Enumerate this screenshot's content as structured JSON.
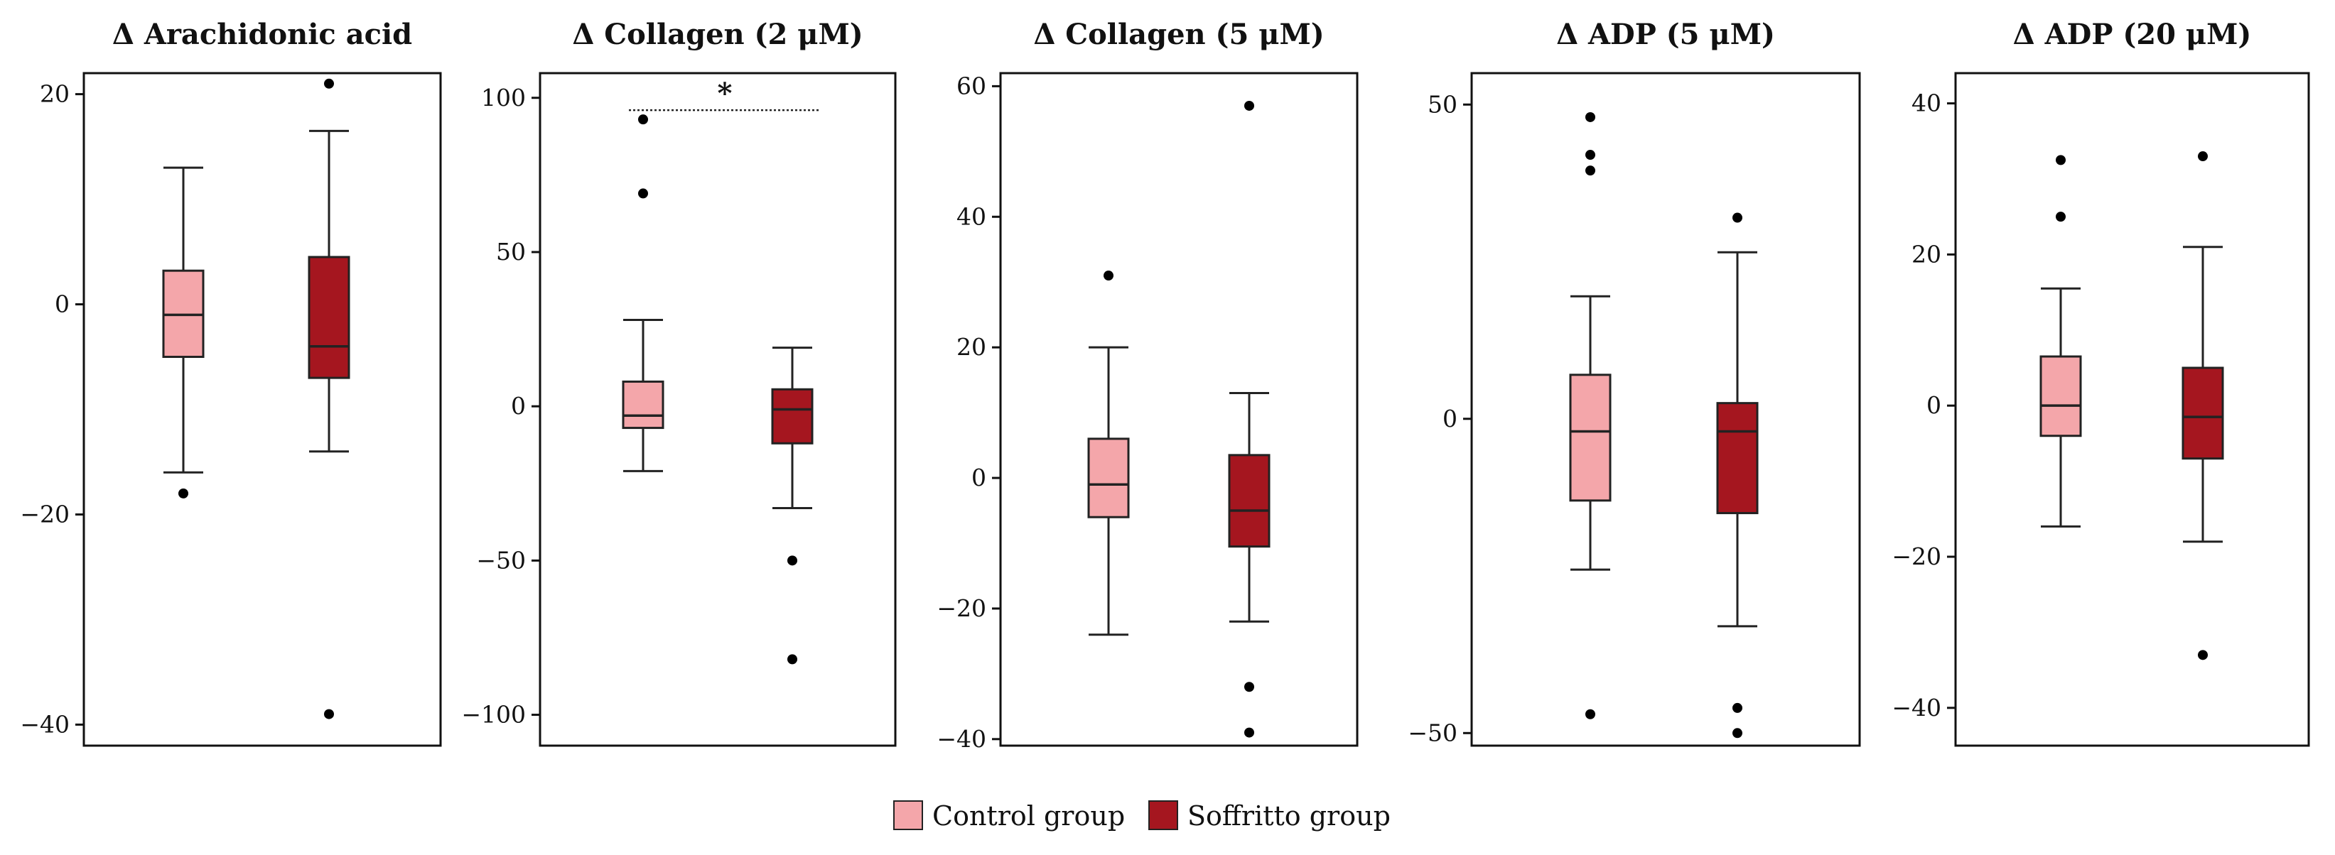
{
  "colors": {
    "control": "#f4a6aa",
    "soffritto": "#a5161f",
    "axis": "#111111",
    "outlier": "#000000"
  },
  "legend": {
    "items": [
      {
        "label": "Control group",
        "color_key": "control"
      },
      {
        "label": "Soffritto group",
        "color_key": "soffritto"
      }
    ]
  },
  "chart_data": [
    {
      "type": "boxplot",
      "title": "Δ Arachidonic acid",
      "ylim": [
        -42,
        22
      ],
      "yticks": [
        20,
        0,
        -20,
        -40
      ],
      "ytick_labels": [
        "20",
        "0",
        "−20",
        "−40"
      ],
      "groups": [
        {
          "name": "Control group",
          "color_key": "control",
          "whisker_low": -16,
          "q1": -5,
          "median": -1,
          "q3": 3.2,
          "whisker_high": 13,
          "outliers": [
            -18
          ]
        },
        {
          "name": "Soffritto group",
          "color_key": "soffritto",
          "whisker_low": -14,
          "q1": -7,
          "median": -4,
          "q3": 4.5,
          "whisker_high": 16.5,
          "outliers": [
            21,
            -39
          ]
        }
      ]
    },
    {
      "type": "boxplot",
      "title": "Δ Collagen (2 μM)",
      "ylim": [
        -110,
        108
      ],
      "yticks": [
        100,
        50,
        0,
        -50,
        -100
      ],
      "ytick_labels": [
        "100",
        "50",
        "0",
        "−50",
        "−100"
      ],
      "significance": {
        "label": "*",
        "y": 96
      },
      "groups": [
        {
          "name": "Control group",
          "color_key": "control",
          "whisker_low": -21,
          "q1": -7,
          "median": -3,
          "q3": 8,
          "whisker_high": 28,
          "outliers": [
            93,
            69
          ]
        },
        {
          "name": "Soffritto group",
          "color_key": "soffritto",
          "whisker_low": -33,
          "q1": -12,
          "median": -1,
          "q3": 5.5,
          "whisker_high": 19,
          "outliers": [
            -50,
            -82
          ]
        }
      ]
    },
    {
      "type": "boxplot",
      "title": "Δ Collagen (5 μM)",
      "ylim": [
        -41,
        62
      ],
      "yticks": [
        60,
        40,
        20,
        0,
        -20,
        -40
      ],
      "ytick_labels": [
        "60",
        "40",
        "20",
        "0",
        "−20",
        "−40"
      ],
      "groups": [
        {
          "name": "Control group",
          "color_key": "control",
          "whisker_low": -24,
          "q1": -6,
          "median": -1,
          "q3": 6,
          "whisker_high": 20,
          "outliers": [
            31
          ]
        },
        {
          "name": "Soffritto group",
          "color_key": "soffritto",
          "whisker_low": -22,
          "q1": -10.5,
          "median": -5,
          "q3": 3.5,
          "whisker_high": 13,
          "outliers": [
            57,
            -32,
            -39
          ]
        }
      ]
    },
    {
      "type": "boxplot",
      "title": "Δ ADP (5 μM)",
      "ylim": [
        -52,
        55
      ],
      "yticks": [
        50,
        0,
        -50
      ],
      "ytick_labels": [
        "50",
        "0",
        "−50"
      ],
      "groups": [
        {
          "name": "Control group",
          "color_key": "control",
          "whisker_low": -24,
          "q1": -13,
          "median": -2,
          "q3": 7,
          "whisker_high": 19.5,
          "outliers": [
            48,
            42,
            39.5,
            -47
          ]
        },
        {
          "name": "Soffritto group",
          "color_key": "soffritto",
          "whisker_low": -33,
          "q1": -15,
          "median": -2,
          "q3": 2.5,
          "whisker_high": 26.5,
          "outliers": [
            32,
            -46,
            -50
          ]
        }
      ]
    },
    {
      "type": "boxplot",
      "title": "Δ ADP (20 μM)",
      "ylim": [
        -45,
        44
      ],
      "yticks": [
        40,
        20,
        0,
        -20,
        -40
      ],
      "ytick_labels": [
        "40",
        "20",
        "0",
        "−20",
        "−40"
      ],
      "groups": [
        {
          "name": "Control group",
          "color_key": "control",
          "whisker_low": -16,
          "q1": -4,
          "median": 0,
          "q3": 6.5,
          "whisker_high": 15.5,
          "outliers": [
            32.5,
            25
          ]
        },
        {
          "name": "Soffritto group",
          "color_key": "soffritto",
          "whisker_low": -18,
          "q1": -7,
          "median": -1.5,
          "q3": 5,
          "whisker_high": 21,
          "outliers": [
            33,
            -33
          ]
        }
      ]
    }
  ]
}
